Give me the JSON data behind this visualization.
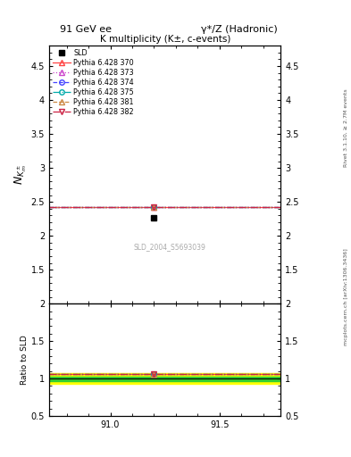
{
  "title_left": "91 GeV ee",
  "title_right": "γ*/Z (Hadronic)",
  "plot_title": "K multiplicity (K±, c-events)",
  "ylabel_main": "$N_{K^\\pm_m}$",
  "ylabel_ratio": "Ratio to SLD",
  "right_label_top": "Rivet 3.1.10, ≥ 2.7M events",
  "right_label_bot": "mcplots.cern.ch [arXiv:1306.3436]",
  "watermark": "SLD_2004_S5693039",
  "x_min": 90.72,
  "x_max": 91.78,
  "data_x": 91.2,
  "data_y": 2.27,
  "theory_y": 2.42,
  "ylim_main": [
    1.0,
    4.8
  ],
  "ylim_ratio": [
    0.5,
    2.0
  ],
  "yticks_main": [
    1.5,
    2.0,
    2.5,
    3.0,
    3.5,
    4.0,
    4.5
  ],
  "yticks_ratio": [
    0.5,
    1.0,
    1.5,
    2.0
  ],
  "xticks": [
    91.0,
    91.5
  ],
  "ratio_theory": 1.065,
  "yellow_lo": 0.93,
  "yellow_hi": 1.07,
  "green_lo": 0.97,
  "green_hi": 1.03,
  "series": [
    {
      "label": "SLD",
      "color": "#000000",
      "marker": "s",
      "linestyle": "none"
    },
    {
      "label": "Pythia 6.428 370",
      "color": "#ff4444",
      "marker": "^",
      "linestyle": "-",
      "mfc": "none"
    },
    {
      "label": "Pythia 6.428 373",
      "color": "#cc44cc",
      "marker": "^",
      "linestyle": ":",
      "mfc": "none"
    },
    {
      "label": "Pythia 6.428 374",
      "color": "#4444ff",
      "marker": "o",
      "linestyle": "--",
      "mfc": "none"
    },
    {
      "label": "Pythia 6.428 375",
      "color": "#00aaaa",
      "marker": "o",
      "linestyle": "-.",
      "mfc": "none"
    },
    {
      "label": "Pythia 6.428 381",
      "color": "#cc8844",
      "marker": "^",
      "linestyle": "--",
      "mfc": "none"
    },
    {
      "label": "Pythia 6.428 382",
      "color": "#cc2244",
      "marker": "v",
      "linestyle": "-.",
      "mfc": "none"
    }
  ]
}
